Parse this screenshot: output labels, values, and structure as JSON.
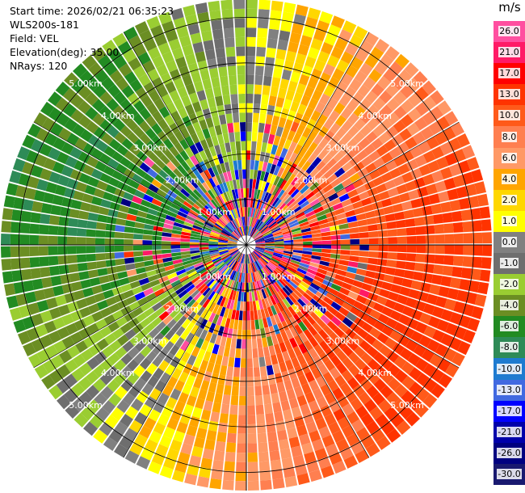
{
  "header": {
    "start_time": "Start time: 2026/02/21 06:35:23",
    "instrument": "WLS200s-181",
    "field": "Field: VEL",
    "elevation": "Elevation(deg): 35.00",
    "nrays": "NRays: 120"
  },
  "colorbar": {
    "title": "m/s",
    "ticks": [
      "26.0",
      "21.0",
      "17.0",
      "13.0",
      "10.0",
      "8.0",
      "6.0",
      "4.0",
      "2.0",
      "1.0",
      "0.0",
      "-1.0",
      "-2.0",
      "-4.0",
      "-6.0",
      "-8.0",
      "-10.0",
      "-13.0",
      "-17.0",
      "-21.0",
      "-26.0",
      "-30.0"
    ],
    "colors": [
      "#ff4fa0",
      "#ff1a66",
      "#ff0000",
      "#ff3300",
      "#ff5a1a",
      "#ff7f50",
      "#ff9966",
      "#ffa500",
      "#ffd700",
      "#ffff00",
      "#808080",
      "#6e6e6e",
      "#9acd32",
      "#6b8e23",
      "#228b22",
      "#2e8b57",
      "#1e7bd0",
      "#4169e1",
      "#0000ff",
      "#0000aa",
      "#000080",
      "#191970"
    ]
  },
  "chart_data": {
    "type": "heatmap",
    "subtype": "ppi-polar",
    "field": "VEL",
    "units": "m/s",
    "nrays": 120,
    "elevation_deg": 35.0,
    "range_rings_km": [
      "1.00km",
      "2.00km",
      "3.00km",
      "4.00km",
      "5.00km"
    ],
    "max_range_km": 5.4,
    "value_range": [
      -30.0,
      26.0
    ],
    "pattern": {
      "description_sectors_deg_clockwise_from_north": [
        {
          "from": -90,
          "to": -20,
          "dominant": "negative"
        },
        {
          "from": -20,
          "to": 30,
          "dominant": "near-zero"
        },
        {
          "from": 30,
          "to": 150,
          "dominant": "positive"
        },
        {
          "from": 150,
          "to": 200,
          "dominant": "small-positive"
        },
        {
          "from": 200,
          "to": 270,
          "dominant": "near-zero-negative"
        }
      ]
    }
  }
}
